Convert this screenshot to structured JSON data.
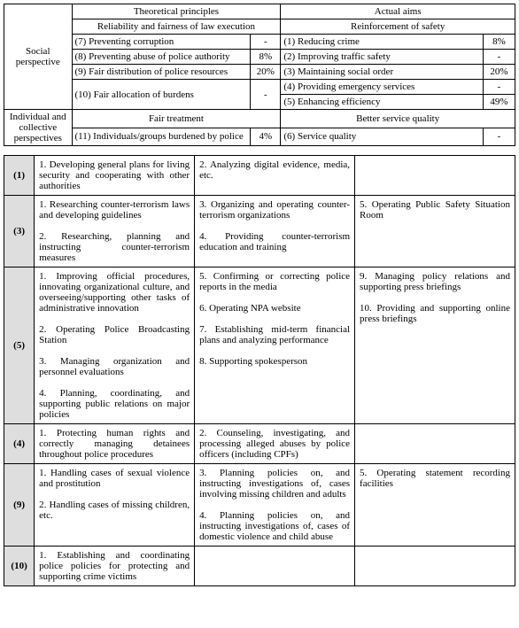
{
  "table1": {
    "header": {
      "theory": "Theoretical principles",
      "aims": "Actual aims"
    },
    "social": {
      "label": "Social perspective",
      "theory_header": "Reliability and fairness of law execution",
      "aims_header": "Reinforcement of safety",
      "rows": [
        {
          "t": "(7) Preventing corruption",
          "tp": "-",
          "a": "(1) Reducing crime",
          "ap": "8%"
        },
        {
          "t": "(8) Preventing abuse of police authority",
          "tp": "8%",
          "a": "(2) Improving traffic safety",
          "ap": "-"
        },
        {
          "t": "(9) Fair distribution of police resources",
          "tp": "20%",
          "a": "(3) Maintaining social order",
          "ap": "20%"
        },
        {
          "t": "(10) Fair allocation of burdens",
          "tp": "-",
          "a": "(4) Providing emergency services",
          "ap": "-",
          "a2": "(5) Enhancing efficiency",
          "ap2": "49%"
        }
      ]
    },
    "indiv": {
      "label": "Individual and collective perspectives",
      "theory_header": "Fair treatment",
      "aims_header": "Better service quality",
      "t": "(11) Individuals/groups burdened by police",
      "tp": "4%",
      "a": "(6) Service quality",
      "ap": "-"
    }
  },
  "table2": {
    "rows": [
      {
        "idx": "(1)",
        "c1": "1. Developing general plans for living security and cooperating with other authorities",
        "c2": "2. Analyzing digital evidence, media, etc.",
        "c3": ""
      },
      {
        "idx": "(3)",
        "c1": "1. Researching counter-terrorism laws and developing guidelines\n\n2. Researching, planning and instructing counter-terrorism measures",
        "c2": "3. Organizing and operating counter-terrorism organizations\n\n4. Providing counter-terrorism education and training",
        "c3": "5. Operating Public Safety Situation Room"
      },
      {
        "idx": "(5)",
        "c1": "1. Improving official procedures, innovating organizational culture, and overseeing/supporting other tasks of administrative innovation\n\n2. Operating Police Broadcasting Station\n\n3. Managing organization and personnel evaluations\n\n4. Planning, coordinating, and supporting public relations on major policies",
        "c2": "5. Confirming or correcting police reports in the media\n\n6. Operating NPA website\n\n7. Establishing mid-term financial plans and analyzing performance\n\n8. Supporting spokesperson",
        "c3": "9. Managing policy relations and supporting press briefings\n\n10. Providing and supporting online press briefings"
      },
      {
        "idx": "(4)",
        "c1": "1. Protecting human rights and correctly managing detainees throughout police procedures",
        "c2": "2. Counseling, investigating, and processing alleged abuses by police officers (including CPFs)",
        "c3": ""
      },
      {
        "idx": "(9)",
        "c1": "1. Handling cases of sexual violence and prostitution\n\n2. Handling cases of missing children, etc.",
        "c2": "3. Planning policies on, and instructing investigations of, cases involving missing children and adults\n\n4. Planning policies on, and instructing investigations of, cases of domestic violence and child abuse",
        "c3": "5. Operating statement recording facilities"
      },
      {
        "idx": "(10)",
        "c1": "1. Establishing and coordinating police policies for protecting and supporting crime victims",
        "c2": "",
        "c3": ""
      }
    ]
  }
}
